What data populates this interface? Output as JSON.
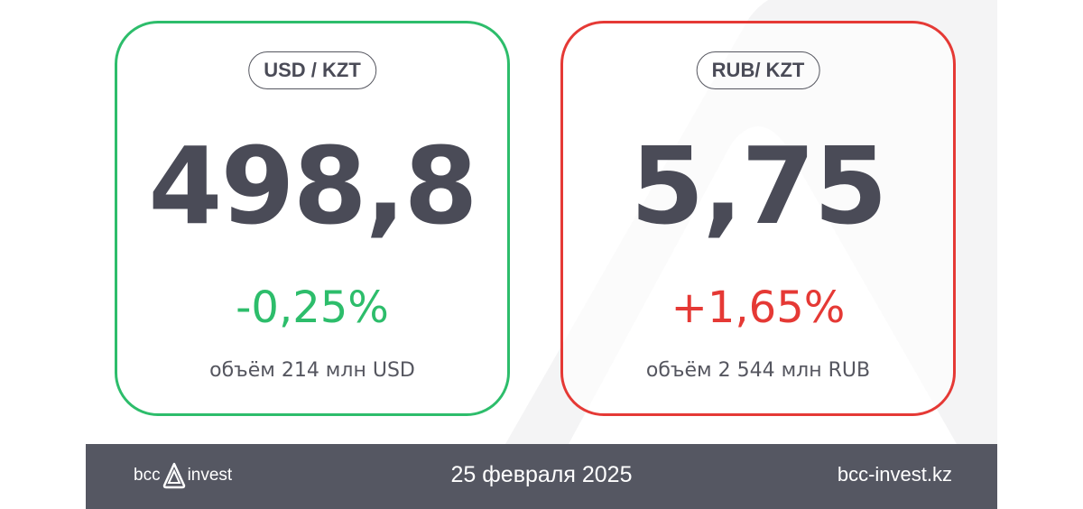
{
  "cards": [
    {
      "pair": "USD / KZT",
      "rate": "498,8",
      "change": "-0,25%",
      "volume": "объём 214 млн USD",
      "color": "#2dbd6b"
    },
    {
      "pair": "RUB/ KZT",
      "rate": "5,75",
      "change": "+1,65%",
      "volume": "объём 2 544 млн RUB",
      "color": "#e53935"
    }
  ],
  "footer": {
    "logo_left": "bcc",
    "logo_right": "invest",
    "logo_icon": "triangle-logo-icon",
    "date": "25 февраля 2025",
    "website": "bcc-invest.kz",
    "background": "#555762"
  }
}
